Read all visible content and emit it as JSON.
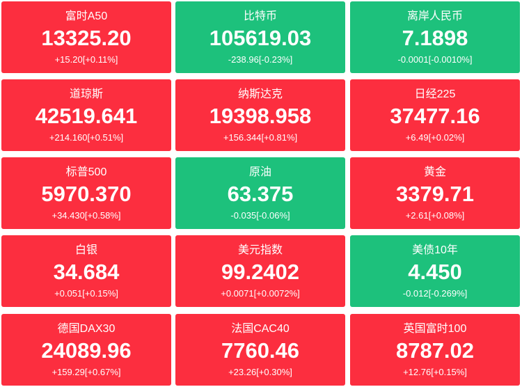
{
  "tiles": [
    {
      "name": "富时A50",
      "price": "13325.20",
      "change": "+15.20[+0.11%]",
      "color": "#fc2e3f"
    },
    {
      "name": "比特币",
      "price": "105619.03",
      "change": "-238.96[-0.23%]",
      "color": "#1dc17c"
    },
    {
      "name": "离岸人民币",
      "price": "7.1898",
      "change": "-0.0001[-0.0010%]",
      "color": "#1dc17c"
    },
    {
      "name": "道琼斯",
      "price": "42519.641",
      "change": "+214.160[+0.51%]",
      "color": "#fc2e3f"
    },
    {
      "name": "纳斯达克",
      "price": "19398.958",
      "change": "+156.344[+0.81%]",
      "color": "#fc2e3f"
    },
    {
      "name": "日经225",
      "price": "37477.16",
      "change": "+6.49[+0.02%]",
      "color": "#fc2e3f"
    },
    {
      "name": "标普500",
      "price": "5970.370",
      "change": "+34.430[+0.58%]",
      "color": "#fc2e3f"
    },
    {
      "name": "原油",
      "price": "63.375",
      "change": "-0.035[-0.06%]",
      "color": "#1dc17c"
    },
    {
      "name": "黄金",
      "price": "3379.71",
      "change": "+2.61[+0.08%]",
      "color": "#fc2e3f"
    },
    {
      "name": "白银",
      "price": "34.684",
      "change": "+0.051[+0.15%]",
      "color": "#fc2e3f"
    },
    {
      "name": "美元指数",
      "price": "99.2402",
      "change": "+0.0071[+0.0072%]",
      "color": "#fc2e3f"
    },
    {
      "name": "美债10年",
      "price": "4.450",
      "change": "-0.012[-0.269%]",
      "color": "#1dc17c"
    },
    {
      "name": "德国DAX30",
      "price": "24089.96",
      "change": "+159.29[+0.67%]",
      "color": "#fc2e3f"
    },
    {
      "name": "法国CAC40",
      "price": "7760.46",
      "change": "+23.26[+0.30%]",
      "color": "#fc2e3f"
    },
    {
      "name": "英国富时100",
      "price": "8787.02",
      "change": "+12.76[+0.15%]",
      "color": "#fc2e3f"
    }
  ]
}
